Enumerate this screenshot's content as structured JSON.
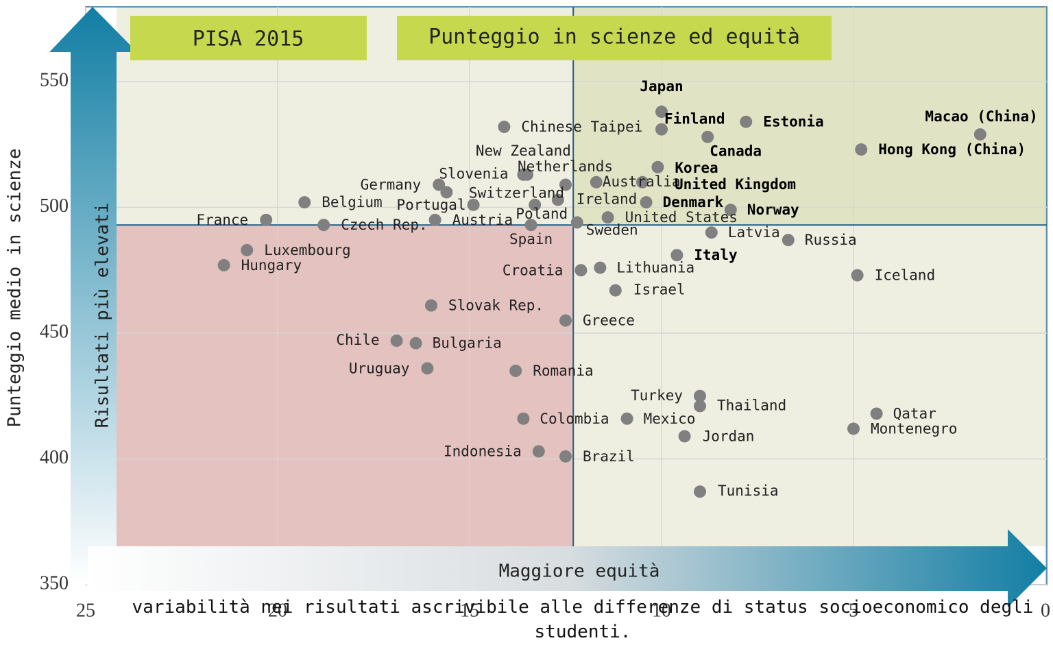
{
  "chart_data": {
    "type": "scatter",
    "title": "Punteggio in scienze ed equità",
    "subtitle": "PISA 2015",
    "y_label": "Punteggio medio in scienze",
    "x_label": "variabilità nei risultati ascrivibile alle differenze di status socioeconomico degli studenti.",
    "annotations": [
      "Risultati più elevati",
      "Maggiore equità"
    ],
    "labels": [
      "Japan",
      "Finland",
      "Estonia",
      "Macao (China)",
      "Hong Kong (China)",
      "Canada",
      "Chinese Taipei",
      "Korea",
      "New Zealand",
      "Netherlands",
      "Germany",
      "Slovenia",
      "Portugal",
      "Switzerland",
      "Poland",
      "Ireland",
      "Spain",
      "Sweden",
      "Australia",
      "United Kingdom",
      "Denmark",
      "United States",
      "Norway",
      "Latvia",
      "Russia",
      "Italy",
      "Iceland",
      "Lithuania",
      "Croatia",
      "Israel",
      "Greece",
      "Slovak Rep.",
      "Chile",
      "Bulgaria",
      "Uruguay",
      "Romania",
      "Turkey",
      "Thailand",
      "Colombia",
      "Mexico",
      "Jordan",
      "Qatar",
      "Montenegro",
      "Indonesia",
      "Brazil",
      "Tunisia",
      "France",
      "Belgium",
      "Czech Rep.",
      "Austria",
      "Luxembourg",
      "Hungary"
    ],
    "x": [
      10.0,
      10.0,
      7.8,
      1.7,
      4.8,
      8.8,
      14.1,
      10.1,
      13.6,
      13.5,
      15.8,
      15.6,
      14.9,
      12.5,
      13.3,
      12.7,
      13.4,
      12.2,
      11.7,
      10.5,
      10.4,
      11.4,
      8.2,
      8.7,
      6.7,
      9.6,
      4.9,
      11.6,
      12.1,
      11.2,
      12.5,
      16.0,
      16.9,
      16.4,
      16.1,
      13.8,
      9.0,
      9.0,
      13.6,
      10.9,
      9.4,
      4.4,
      5.0,
      13.2,
      12.5,
      9.0,
      20.3,
      19.3,
      18.8,
      15.9,
      20.8,
      21.4
    ],
    "values": [
      538,
      531,
      534,
      529,
      523,
      528,
      532,
      516,
      513,
      513,
      509,
      506,
      501,
      509,
      501,
      503,
      493,
      494,
      510,
      510,
      502,
      496,
      499,
      490,
      487,
      481,
      473,
      476,
      475,
      467,
      455,
      461,
      447,
      446,
      436,
      435,
      425,
      421,
      416,
      416,
      409,
      418,
      412,
      403,
      401,
      387,
      495,
      502,
      493,
      495,
      483,
      477
    ],
    "bold": [
      true,
      true,
      true,
      true,
      true,
      true,
      false,
      true,
      false,
      false,
      false,
      false,
      false,
      false,
      false,
      false,
      false,
      false,
      false,
      true,
      true,
      false,
      true,
      false,
      false,
      true,
      false,
      false,
      false,
      false,
      false,
      false,
      false,
      false,
      false,
      false,
      false,
      false,
      false,
      false,
      false,
      false,
      false,
      false,
      false,
      false,
      false,
      false,
      false,
      false,
      false,
      false
    ],
    "color": "#808080",
    "xlim": [
      25,
      0
    ],
    "xticks": [
      25,
      20,
      15,
      10,
      5,
      0
    ],
    "ylim": [
      350,
      550
    ],
    "yticks": [
      350,
      400,
      450,
      500,
      550
    ],
    "xline": 12.3,
    "yline": 493,
    "grid": true
  }
}
